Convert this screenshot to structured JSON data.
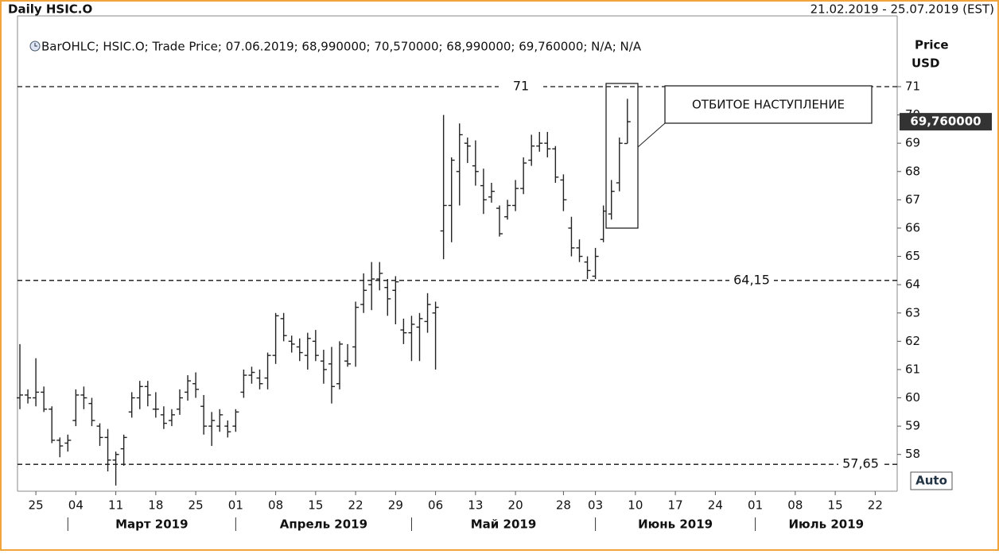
{
  "chart_data": {
    "type": "ohlc",
    "title": "Daily HSIC.O",
    "date_range": "21.02.2019 - 25.07.2019 (EST)",
    "legend_text": "BarOHLC; HSIC.O; Trade Price; 07.06.2019; 68,990000; 70,570000; 68,990000; 69,760000; N/A; N/A",
    "y_axis_label": [
      "Price",
      "USD"
    ],
    "last_price": {
      "value": 69.76,
      "label": "69,760000"
    },
    "auto_button": "Auto",
    "annotation_text": "ОТБИТОЕ НАСТУПЛЕНИЕ",
    "color": "#222222",
    "x": [
      "2019-02-21",
      "2019-02-22",
      "2019-02-25",
      "2019-02-26",
      "2019-02-27",
      "2019-02-28",
      "2019-03-01",
      "2019-03-04",
      "2019-03-05",
      "2019-03-06",
      "2019-03-07",
      "2019-03-08",
      "2019-03-11",
      "2019-03-12",
      "2019-03-13",
      "2019-03-14",
      "2019-03-15",
      "2019-03-18",
      "2019-03-19",
      "2019-03-20",
      "2019-03-21",
      "2019-03-22",
      "2019-03-25",
      "2019-03-26",
      "2019-03-27",
      "2019-03-28",
      "2019-03-29",
      "2019-04-01",
      "2019-04-02",
      "2019-04-03",
      "2019-04-04",
      "2019-04-05",
      "2019-04-08",
      "2019-04-09",
      "2019-04-10",
      "2019-04-11",
      "2019-04-12",
      "2019-04-15",
      "2019-04-16",
      "2019-04-17",
      "2019-04-18",
      "2019-04-19",
      "2019-04-22",
      "2019-04-23",
      "2019-04-24",
      "2019-04-25",
      "2019-04-26",
      "2019-04-29",
      "2019-04-30",
      "2019-05-01",
      "2019-05-02",
      "2019-05-03",
      "2019-05-06",
      "2019-05-07",
      "2019-05-08",
      "2019-05-09",
      "2019-05-10",
      "2019-05-13",
      "2019-05-14",
      "2019-05-15",
      "2019-05-16",
      "2019-05-17",
      "2019-05-20",
      "2019-05-21",
      "2019-05-22",
      "2019-05-23",
      "2019-05-24",
      "2019-05-27",
      "2019-05-28",
      "2019-05-29",
      "2019-05-30",
      "2019-05-31",
      "2019-06-03",
      "2019-06-04",
      "2019-06-05",
      "2019-06-06",
      "2019-06-07"
    ],
    "open": [
      60.0,
      60.1,
      60.0,
      60.2,
      59.6,
      58.5,
      58.4,
      59.2,
      60.1,
      59.8,
      59.0,
      58.6,
      57.8,
      58.2,
      59.5,
      60.0,
      60.4,
      59.6,
      59.4,
      59.2,
      59.6,
      60.2,
      60.5,
      59.7,
      59.0,
      59.0,
      59.0,
      59.0,
      60.2,
      60.8,
      60.7,
      60.7,
      61.5,
      62.8,
      62.0,
      61.8,
      61.5,
      62.0,
      61.3,
      61.2,
      60.5,
      61.3,
      61.8,
      63.3,
      64.0,
      64.2,
      63.9,
      63.8,
      62.4,
      62.3,
      62.5,
      62.7,
      63.0,
      65.9,
      66.8,
      68.0,
      69.0,
      68.2,
      67.5,
      67.1,
      66.7,
      66.4,
      66.8,
      67.4,
      68.4,
      68.9,
      69.0,
      68.8,
      67.7,
      66.0,
      65.3,
      64.8,
      64.3,
      65.6,
      66.5,
      67.6,
      68.99
    ],
    "high": [
      61.9,
      60.3,
      61.4,
      60.4,
      59.7,
      58.6,
      58.7,
      60.3,
      60.4,
      60.0,
      59.1,
      58.9,
      58.1,
      58.7,
      60.2,
      60.6,
      60.6,
      60.2,
      59.7,
      59.6,
      60.3,
      60.8,
      60.9,
      60.1,
      59.5,
      59.6,
      59.2,
      59.6,
      61.0,
      61.1,
      61.0,
      61.6,
      63.0,
      63.0,
      62.2,
      62.1,
      62.3,
      62.4,
      61.7,
      61.8,
      62.0,
      61.9,
      63.4,
      64.4,
      64.8,
      64.8,
      64.2,
      64.3,
      62.8,
      62.9,
      63.0,
      63.7,
      63.4,
      70.0,
      68.5,
      69.7,
      69.2,
      69.1,
      68.1,
      67.6,
      66.8,
      67.0,
      67.7,
      68.5,
      69.3,
      69.4,
      69.4,
      68.9,
      67.9,
      66.4,
      65.6,
      65.0,
      65.3,
      66.8,
      67.7,
      69.2,
      70.57
    ],
    "low": [
      59.6,
      59.8,
      59.7,
      59.5,
      58.4,
      57.9,
      58.1,
      59.0,
      59.6,
      59.0,
      58.3,
      57.4,
      56.9,
      57.6,
      59.3,
      59.6,
      59.7,
      59.3,
      58.9,
      59.0,
      59.4,
      59.9,
      60.0,
      58.7,
      58.3,
      58.8,
      58.6,
      58.8,
      60.0,
      60.5,
      60.3,
      60.3,
      61.2,
      62.0,
      61.6,
      61.3,
      61.0,
      61.3,
      60.5,
      59.8,
      60.3,
      61.1,
      61.1,
      63.0,
      63.1,
      63.8,
      62.9,
      62.6,
      61.9,
      61.3,
      61.3,
      62.3,
      61.0,
      64.9,
      65.5,
      66.8,
      68.3,
      67.5,
      66.5,
      66.9,
      65.7,
      66.3,
      66.6,
      67.2,
      68.2,
      68.7,
      68.5,
      67.6,
      66.6,
      65.0,
      64.8,
      64.2,
      64.2,
      65.5,
      66.3,
      67.3,
      68.99
    ],
    "close": [
      60.1,
      60.0,
      60.2,
      59.6,
      58.5,
      58.3,
      58.5,
      60.1,
      60.0,
      59.2,
      58.6,
      57.8,
      58.0,
      58.6,
      60.0,
      60.4,
      60.1,
      59.6,
      59.1,
      59.4,
      60.0,
      60.6,
      60.3,
      59.0,
      59.2,
      59.4,
      58.8,
      59.5,
      60.8,
      60.9,
      60.5,
      61.5,
      62.9,
      62.2,
      61.9,
      61.6,
      62.1,
      61.5,
      61.0,
      60.4,
      61.9,
      61.2,
      63.2,
      63.8,
      64.2,
      64.4,
      63.5,
      64.1,
      62.3,
      62.6,
      62.8,
      63.3,
      63.2,
      66.8,
      68.4,
      69.3,
      68.9,
      68.0,
      67.0,
      67.3,
      65.8,
      66.8,
      67.4,
      68.3,
      68.9,
      69.0,
      68.8,
      67.8,
      67.0,
      65.3,
      65.0,
      64.5,
      65.0,
      66.6,
      67.3,
      69.0,
      69.76
    ],
    "ylim": [
      56.7,
      73.5
    ],
    "yticks": [
      58,
      59,
      60,
      61,
      62,
      63,
      64,
      65,
      66,
      67,
      68,
      69,
      70,
      71
    ],
    "xticks": [
      {
        "value": "2019-02-25",
        "label": "25"
      },
      {
        "value": "2019-03-04",
        "label": "04"
      },
      {
        "value": "2019-03-11",
        "label": "11"
      },
      {
        "value": "2019-03-18",
        "label": "18"
      },
      {
        "value": "2019-03-25",
        "label": "25"
      },
      {
        "value": "2019-04-01",
        "label": "01"
      },
      {
        "value": "2019-04-08",
        "label": "08"
      },
      {
        "value": "2019-04-15",
        "label": "15"
      },
      {
        "value": "2019-04-22",
        "label": "22"
      },
      {
        "value": "2019-04-29",
        "label": "29"
      },
      {
        "value": "2019-05-06",
        "label": "06"
      },
      {
        "value": "2019-05-13",
        "label": "13"
      },
      {
        "value": "2019-05-20",
        "label": "20"
      },
      {
        "value": "2019-05-28",
        "label": "28"
      },
      {
        "value": "2019-06-03",
        "label": "03"
      },
      {
        "value": "2019-06-10",
        "label": "10"
      },
      {
        "value": "2019-06-17",
        "label": "17"
      },
      {
        "value": "2019-06-24",
        "label": "24"
      },
      {
        "value": "2019-07-01",
        "label": "01"
      },
      {
        "value": "2019-07-08",
        "label": "08"
      },
      {
        "value": "2019-07-15",
        "label": "15"
      },
      {
        "value": "2019-07-22",
        "label": "22"
      }
    ],
    "months": [
      {
        "value": "2019-03",
        "label": "Март 2019"
      },
      {
        "value": "2019-04",
        "label": "Апрель 2019"
      },
      {
        "value": "2019-05",
        "label": "Май 2019"
      },
      {
        "value": "2019-06",
        "label": "Июнь 2019"
      },
      {
        "value": "2019-07",
        "label": "Июль 2019"
      }
    ],
    "levels": [
      {
        "value": 71,
        "label": "71"
      },
      {
        "value": 64.15,
        "label": "64,15"
      },
      {
        "value": 57.65,
        "label": "57,65"
      }
    ]
  }
}
